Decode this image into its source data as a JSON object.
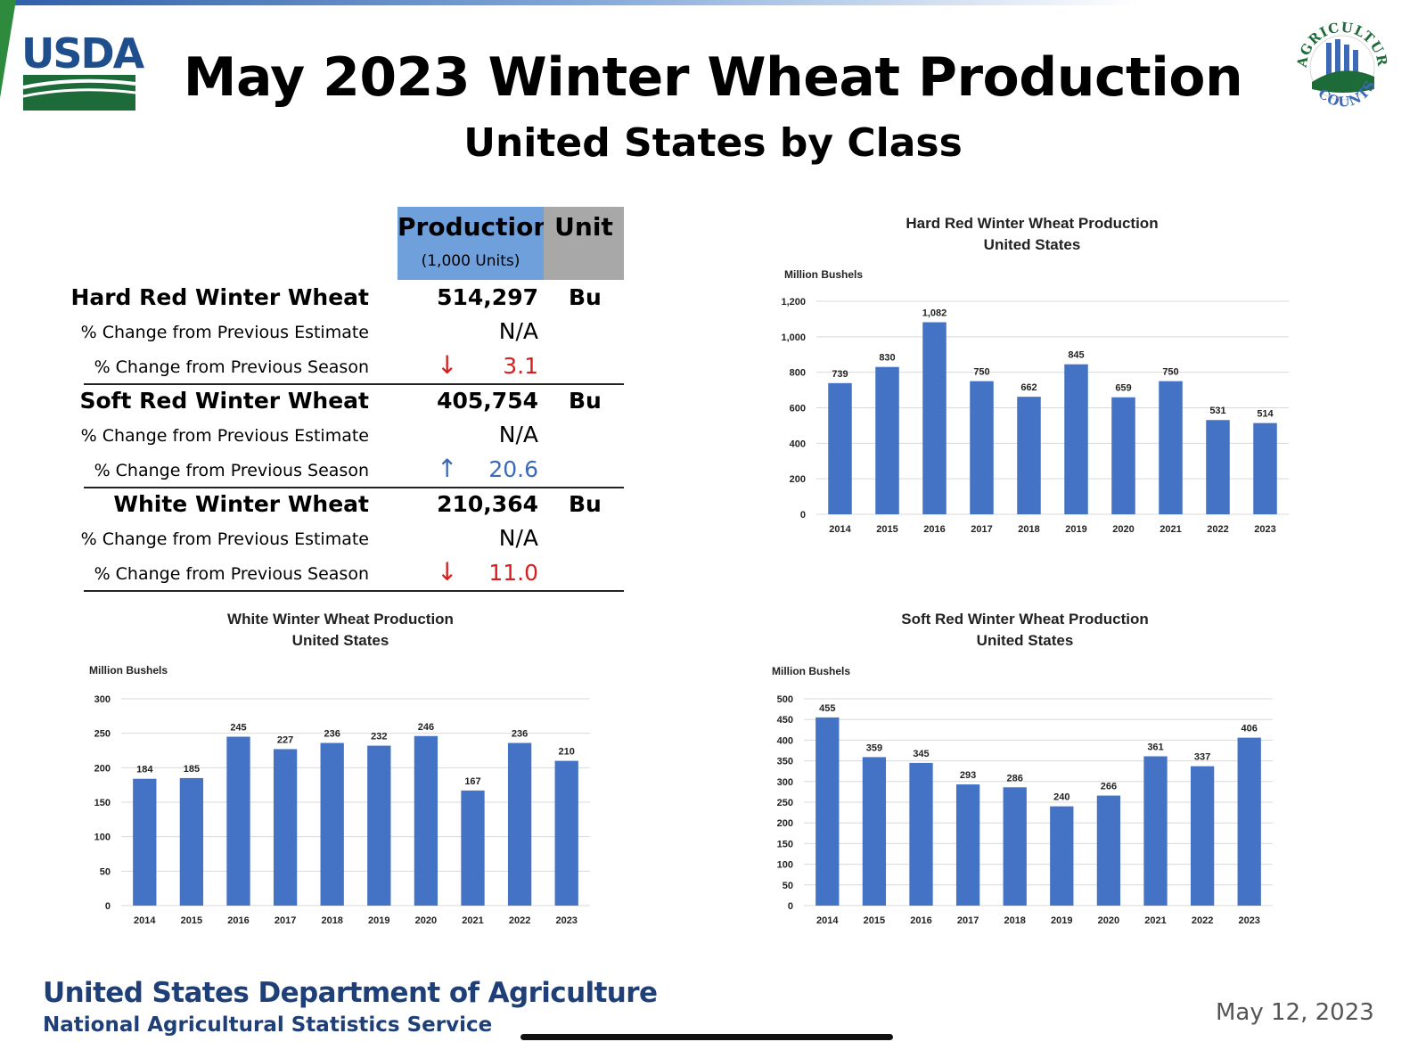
{
  "header": {
    "title": "May 2023 Winter Wheat Production",
    "subtitle": "United States by Class",
    "usda_logo_text": "USDA",
    "ag_counts_logo_text": "AGRICULTURE COUNTS"
  },
  "table": {
    "production_header": "Production",
    "production_subheader": "(1,000 Units)",
    "unit_header": "Unit",
    "classes": [
      {
        "name": "Hard Red Winter Wheat",
        "production": "514,297",
        "unit": "Bu",
        "estimate_label": "% Change from Previous Estimate",
        "estimate_value": "N/A",
        "season_label": "% Change from Previous Season",
        "season_arrow": "↓",
        "season_direction": "down",
        "season_value": "3.1"
      },
      {
        "name": "Soft Red Winter Wheat",
        "production": "405,754",
        "unit": "Bu",
        "estimate_label": "% Change from Previous Estimate",
        "estimate_value": "N/A",
        "season_label": "% Change from Previous Season",
        "season_arrow": "↑",
        "season_direction": "up",
        "season_value": "20.6"
      },
      {
        "name": "White Winter Wheat",
        "production": "210,364",
        "unit": "Bu",
        "estimate_label": "% Change from Previous Estimate",
        "estimate_value": "N/A",
        "season_label": "% Change from Previous Season",
        "season_arrow": "↓",
        "season_direction": "down",
        "season_value": "11.0"
      }
    ]
  },
  "colors": {
    "bar": "#4472c4",
    "grid": "#d9d9d9",
    "up": "#3d6ab8",
    "down": "#d81e1e",
    "usda_blue": "#1f4e8c",
    "usda_green": "#1e6b3a"
  },
  "chart_data": [
    {
      "type": "bar",
      "title": "Hard Red Winter Wheat Production",
      "subtitle": "United States",
      "ylabel": "Million  Bushels",
      "categories": [
        "2014",
        "2015",
        "2016",
        "2017",
        "2018",
        "2019",
        "2020",
        "2021",
        "2022",
        "2023"
      ],
      "values": [
        739,
        830,
        1082,
        750,
        662,
        845,
        659,
        750,
        531,
        514
      ],
      "value_labels": [
        "739",
        "830",
        "1,082",
        "750",
        "662",
        "845",
        "659",
        "750",
        "531",
        "514"
      ],
      "ylim": [
        0,
        1200
      ],
      "yticks": [
        0,
        200,
        400,
        600,
        800,
        1000,
        1200
      ],
      "ytick_labels": [
        "0",
        "200",
        "400",
        "600",
        "800",
        "1,000",
        "1,200"
      ],
      "grid": true
    },
    {
      "type": "bar",
      "title": "White Winter Wheat Production",
      "subtitle": "United States",
      "ylabel": "Million  Bushels",
      "categories": [
        "2014",
        "2015",
        "2016",
        "2017",
        "2018",
        "2019",
        "2020",
        "2021",
        "2022",
        "2023"
      ],
      "values": [
        184,
        185,
        245,
        227,
        236,
        232,
        246,
        167,
        236,
        210
      ],
      "value_labels": [
        "184",
        "185",
        "245",
        "227",
        "236",
        "232",
        "246",
        "167",
        "236",
        "210"
      ],
      "ylim": [
        0,
        300
      ],
      "yticks": [
        0,
        50,
        100,
        150,
        200,
        250,
        300
      ],
      "ytick_labels": [
        "0",
        "50",
        "100",
        "150",
        "200",
        "250",
        "300"
      ],
      "grid": true
    },
    {
      "type": "bar",
      "title": "Soft Red Winter Wheat Production",
      "subtitle": "United States",
      "ylabel": "Million  Bushels",
      "categories": [
        "2014",
        "2015",
        "2016",
        "2017",
        "2018",
        "2019",
        "2020",
        "2021",
        "2022",
        "2023"
      ],
      "values": [
        455,
        359,
        345,
        293,
        286,
        240,
        266,
        361,
        337,
        406
      ],
      "value_labels": [
        "455",
        "359",
        "345",
        "293",
        "286",
        "240",
        "266",
        "361",
        "337",
        "406"
      ],
      "ylim": [
        0,
        500
      ],
      "yticks": [
        0,
        50,
        100,
        150,
        200,
        250,
        300,
        350,
        400,
        450,
        500
      ],
      "ytick_labels": [
        "0",
        "50",
        "100",
        "150",
        "200",
        "250",
        "300",
        "350",
        "400",
        "450",
        "500"
      ],
      "grid": true
    }
  ],
  "footer": {
    "org_name": "United States Department of Agriculture",
    "service_name": "National Agricultural Statistics Service",
    "date": "May 12, 2023"
  }
}
